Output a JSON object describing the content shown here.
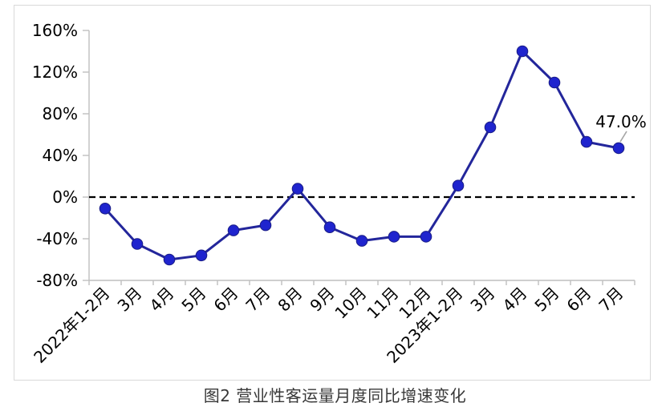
{
  "figure": {
    "caption": "图2  营业性客运量月度同比增速变化"
  },
  "chart_data": {
    "type": "line",
    "title": "",
    "xlabel": "",
    "ylabel": "",
    "categories": [
      "2022年1-2月",
      "3月",
      "4月",
      "5月",
      "6月",
      "7月",
      "8月",
      "9月",
      "10月",
      "11月",
      "12月",
      "2023年1-2月",
      "3月",
      "4月",
      "5月",
      "6月",
      "7月"
    ],
    "series": [
      {
        "name": "营业性客运量月度同比增速",
        "values": [
          -11,
          -45,
          -60,
          -56,
          -32,
          -27,
          8,
          -29,
          -42,
          -38,
          -38,
          11,
          67,
          140,
          110,
          53,
          47
        ]
      }
    ],
    "ylim": [
      -80,
      160
    ],
    "ytick_step": 40,
    "ytick_values": [
      160,
      120,
      80,
      40,
      0,
      -40,
      -80
    ],
    "ytick_labels": [
      "160%",
      "120%",
      "80%",
      "40%",
      "0%",
      "-40%",
      "-80%"
    ],
    "grid": "off",
    "legend": "none",
    "zero_baseline": {
      "style": "dashed",
      "value": 0
    },
    "annotation": {
      "text": "47.0%",
      "category_index": 16
    },
    "colors": {
      "line": "#23269B",
      "marker": "#1F24CE",
      "marker_edge": "#1A1D86",
      "axis": "#BFBFBF",
      "zero_line": "#000000",
      "tick_label": "#000000",
      "annotation_text": "#000000",
      "leader_line": "#A6A6A6",
      "frame_border": "#D9D9D9",
      "caption_text": "#383838"
    }
  }
}
